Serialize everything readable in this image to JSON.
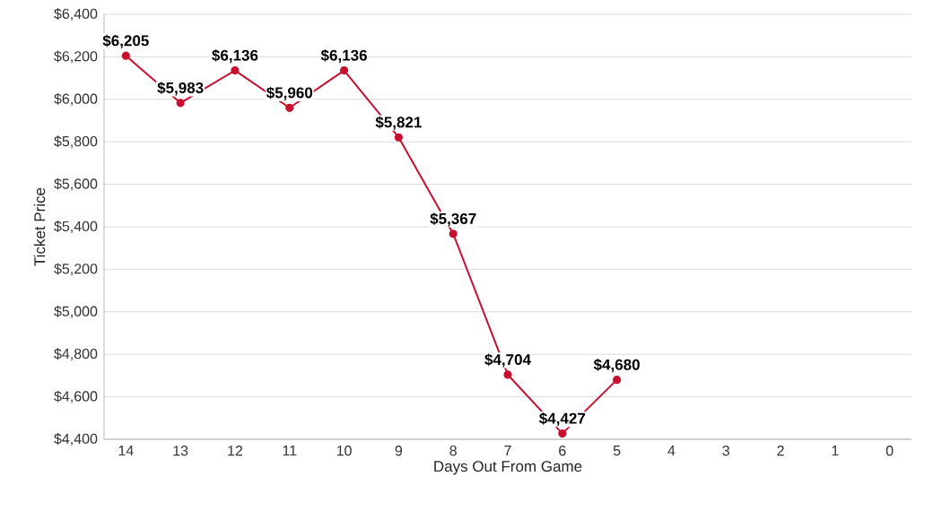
{
  "chart_data": {
    "type": "line",
    "xlabel": "Days Out From Game",
    "ylabel": "Ticket Price",
    "categories": [
      "14",
      "13",
      "12",
      "11",
      "10",
      "9",
      "8",
      "7",
      "6",
      "5",
      "4",
      "3",
      "2",
      "1",
      "0"
    ],
    "series": [
      {
        "color": "#c8102e",
        "values": [
          6205,
          5983,
          6136,
          5960,
          6136,
          5821,
          5367,
          4704,
          4427,
          4680,
          null,
          null,
          null,
          null,
          null
        ],
        "value_labels": [
          "$6,205",
          "$5,983",
          "$6,136",
          "$5,960",
          "$6,136",
          "$5,821",
          "$5,367",
          "$4,704",
          "$4,427",
          "$4,680",
          null,
          null,
          null,
          null,
          null
        ]
      }
    ],
    "ylim": [
      4400,
      6400
    ],
    "yticks": [
      {
        "value": 4400,
        "label": "$4,400"
      },
      {
        "value": 4600,
        "label": "$4,600"
      },
      {
        "value": 4800,
        "label": "$4,800"
      },
      {
        "value": 5000,
        "label": "$5,000"
      },
      {
        "value": 5200,
        "label": "$5,200"
      },
      {
        "value": 5400,
        "label": "$5,400"
      },
      {
        "value": 5600,
        "label": "$5,600"
      },
      {
        "value": 5800,
        "label": "$5,800"
      },
      {
        "value": 6000,
        "label": "$6,000"
      },
      {
        "value": 6200,
        "label": "$6,200"
      },
      {
        "value": 6400,
        "label": "$6,400"
      }
    ],
    "grid": "y",
    "marker": "circle",
    "line_style": "solid"
  }
}
